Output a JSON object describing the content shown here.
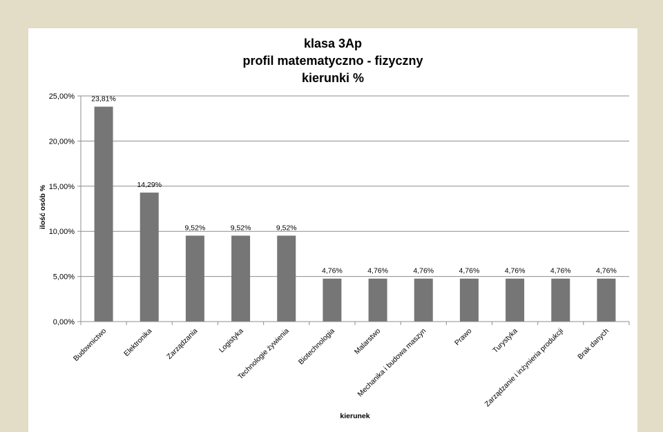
{
  "chart_data": {
    "type": "bar",
    "title_lines": [
      "klasa 3Ap",
      "profil matematyczno - fizyczny",
      "kierunki %"
    ],
    "xlabel": "kierunek",
    "ylabel": "ilość osób %",
    "ylim": [
      0,
      25
    ],
    "yticks": [
      0,
      5,
      10,
      15,
      20,
      25
    ],
    "ytick_labels": [
      "0,00%",
      "5,00%",
      "10,00%",
      "15,00%",
      "20,00%",
      "25,00%"
    ],
    "grid": true,
    "legend": "none",
    "bar_color": "#767676",
    "categories": [
      "Budownictwo",
      "Elektronika",
      "Zarządzania",
      "Logistyka",
      "Technologie żywienia",
      "Biotechnologia",
      "Malarstwo",
      "Mechanika i budowa maszyn",
      "Prawo",
      "Turystyka",
      "Zarządzanie i inżynieria produkcji",
      "Brak danych"
    ],
    "values": [
      23.81,
      14.29,
      9.52,
      9.52,
      9.52,
      4.76,
      4.76,
      4.76,
      4.76,
      4.76,
      4.76,
      4.76
    ],
    "data_labels": [
      "23,81%",
      "14,29%",
      "9,52%",
      "9,52%",
      "9,52%",
      "4,76%",
      "4,76%",
      "4,76%",
      "4,76%",
      "4,76%",
      "4,76%",
      "4,76%"
    ]
  }
}
